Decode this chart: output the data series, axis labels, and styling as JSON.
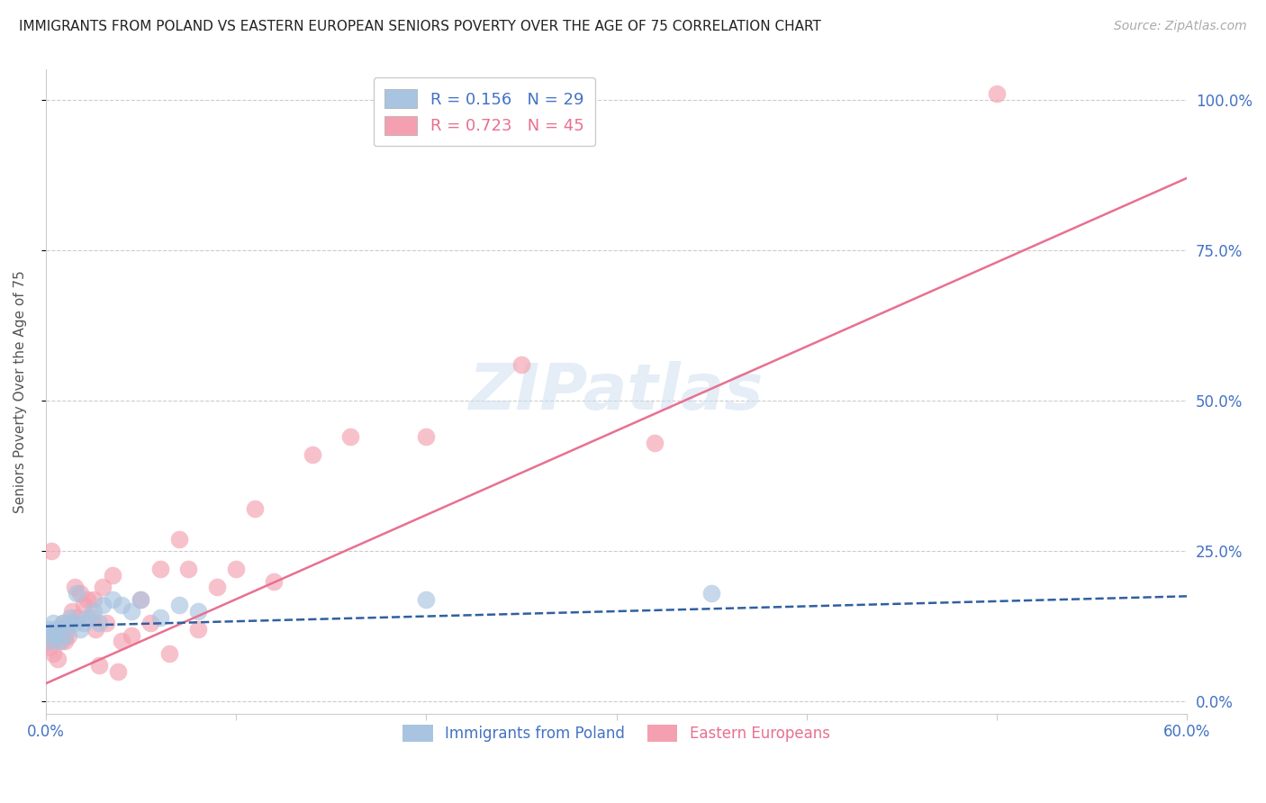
{
  "title": "IMMIGRANTS FROM POLAND VS EASTERN EUROPEAN SENIORS POVERTY OVER THE AGE OF 75 CORRELATION CHART",
  "source": "Source: ZipAtlas.com",
  "ylabel": "Seniors Poverty Over the Age of 75",
  "ytick_labels": [
    "0.0%",
    "25.0%",
    "50.0%",
    "75.0%",
    "100.0%"
  ],
  "ytick_values": [
    0,
    0.25,
    0.5,
    0.75,
    1.0
  ],
  "xtick_values": [
    0,
    0.1,
    0.2,
    0.3,
    0.4,
    0.5,
    0.6
  ],
  "xlim": [
    0,
    0.6
  ],
  "ylim": [
    -0.02,
    1.05
  ],
  "watermark": "ZIPatlas",
  "title_color": "#222222",
  "axis_color": "#4472c4",
  "grid_color": "#cccccc",
  "blue_scatter_x": [
    0.001,
    0.002,
    0.003,
    0.004,
    0.005,
    0.006,
    0.007,
    0.008,
    0.009,
    0.01,
    0.012,
    0.013,
    0.015,
    0.016,
    0.018,
    0.02,
    0.022,
    0.025,
    0.028,
    0.03,
    0.035,
    0.04,
    0.045,
    0.05,
    0.06,
    0.07,
    0.08,
    0.2,
    0.35
  ],
  "blue_scatter_y": [
    0.12,
    0.1,
    0.11,
    0.13,
    0.12,
    0.11,
    0.1,
    0.12,
    0.13,
    0.11,
    0.13,
    0.14,
    0.13,
    0.18,
    0.12,
    0.13,
    0.14,
    0.15,
    0.13,
    0.16,
    0.17,
    0.16,
    0.15,
    0.17,
    0.14,
    0.16,
    0.15,
    0.17,
    0.18
  ],
  "pink_scatter_x": [
    0.001,
    0.002,
    0.003,
    0.004,
    0.005,
    0.006,
    0.007,
    0.008,
    0.009,
    0.01,
    0.011,
    0.012,
    0.014,
    0.015,
    0.016,
    0.018,
    0.02,
    0.022,
    0.024,
    0.025,
    0.026,
    0.028,
    0.03,
    0.032,
    0.035,
    0.038,
    0.04,
    0.045,
    0.05,
    0.055,
    0.06,
    0.065,
    0.07,
    0.075,
    0.08,
    0.09,
    0.1,
    0.11,
    0.12,
    0.14,
    0.16,
    0.2,
    0.25,
    0.32,
    0.5
  ],
  "pink_scatter_y": [
    0.1,
    0.09,
    0.25,
    0.08,
    0.11,
    0.07,
    0.12,
    0.1,
    0.13,
    0.1,
    0.12,
    0.11,
    0.15,
    0.19,
    0.14,
    0.18,
    0.16,
    0.17,
    0.14,
    0.17,
    0.12,
    0.06,
    0.19,
    0.13,
    0.21,
    0.05,
    0.1,
    0.11,
    0.17,
    0.13,
    0.22,
    0.08,
    0.27,
    0.22,
    0.12,
    0.19,
    0.22,
    0.32,
    0.2,
    0.41,
    0.44,
    0.44,
    0.56,
    0.43,
    1.01
  ],
  "blue_line_x": [
    0.0,
    0.6
  ],
  "blue_line_y": [
    0.125,
    0.175
  ],
  "pink_line_x": [
    0.0,
    0.6
  ],
  "pink_line_y": [
    0.03,
    0.87
  ],
  "blue_scatter_color": "#a8c4e0",
  "pink_scatter_color": "#f4a0b0",
  "blue_line_color": "#3060a0",
  "pink_line_color": "#e87090"
}
